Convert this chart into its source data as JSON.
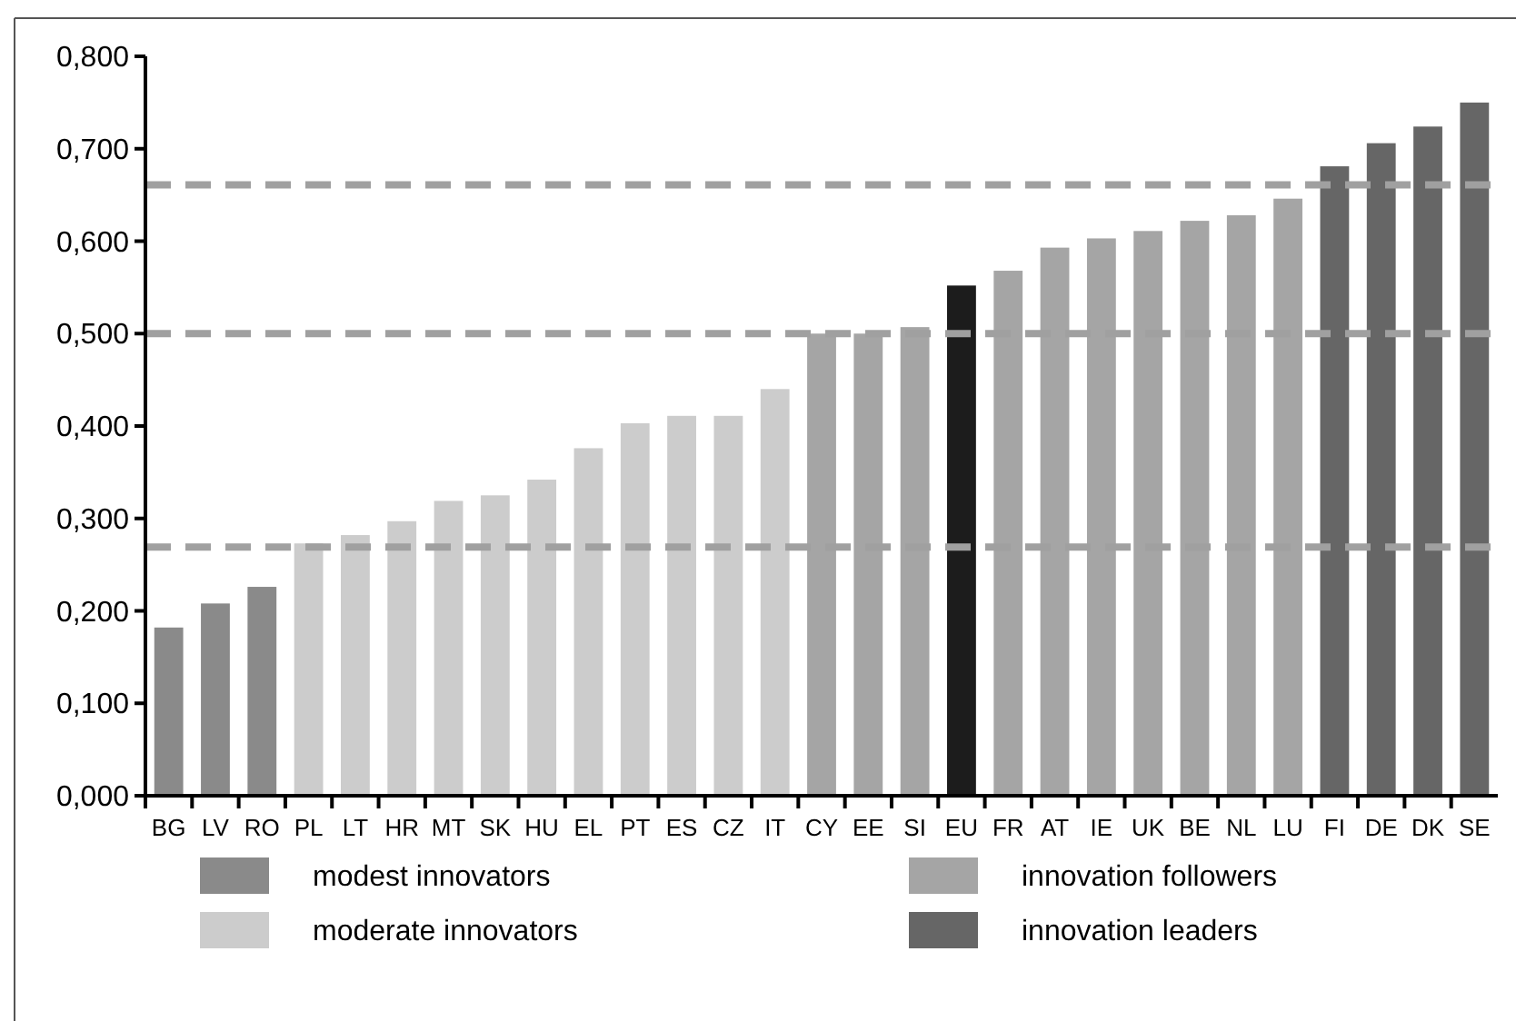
{
  "chart_data": {
    "type": "bar",
    "stacked": true,
    "categories": [
      "BG",
      "LV",
      "RO",
      "PL",
      "LT",
      "HR",
      "MT",
      "SK",
      "HU",
      "EL",
      "PT",
      "ES",
      "CZ",
      "IT",
      "CY",
      "EE",
      "SI",
      "EU",
      "FR",
      "AT",
      "IE",
      "UK",
      "BE",
      "NL",
      "LU",
      "FI",
      "DE",
      "DK",
      "SE"
    ],
    "series": [
      {
        "name": "modest innovators",
        "color": "#8a8a8a",
        "values": [
          0.182,
          0.208,
          0.226,
          null,
          null,
          null,
          null,
          null,
          null,
          null,
          null,
          null,
          null,
          null,
          null,
          null,
          null,
          null,
          null,
          null,
          null,
          null,
          null,
          null,
          null,
          null,
          null,
          null,
          null
        ]
      },
      {
        "name": "moderate innovators",
        "color": "#cccccc",
        "values": [
          null,
          null,
          null,
          0.273,
          0.282,
          0.297,
          0.319,
          0.325,
          0.342,
          0.376,
          0.403,
          0.411,
          0.411,
          0.44,
          null,
          null,
          null,
          null,
          null,
          null,
          null,
          null,
          null,
          null,
          null,
          null,
          null,
          null,
          null
        ]
      },
      {
        "name": "innovation followers",
        "color": "#a5a5a5",
        "values": [
          null,
          null,
          null,
          null,
          null,
          null,
          null,
          null,
          null,
          null,
          null,
          null,
          null,
          null,
          0.5,
          0.5,
          0.507,
          null,
          0.568,
          0.593,
          0.603,
          0.611,
          0.622,
          0.628,
          0.646,
          null,
          null,
          null,
          null
        ]
      },
      {
        "name": "innovation leaders",
        "color": "#666666",
        "values": [
          null,
          null,
          null,
          null,
          null,
          null,
          null,
          null,
          null,
          null,
          null,
          null,
          null,
          null,
          null,
          null,
          null,
          null,
          null,
          null,
          null,
          null,
          null,
          null,
          null,
          0.681,
          0.706,
          0.724,
          0.75
        ]
      },
      {
        "color": "#1c1c1c",
        "values": [
          null,
          null,
          null,
          null,
          null,
          null,
          null,
          null,
          null,
          null,
          null,
          null,
          null,
          null,
          null,
          null,
          null,
          0.552,
          null,
          null,
          null,
          null,
          null,
          null,
          null,
          null,
          null,
          null,
          null
        ]
      }
    ],
    "ylim": [
      0,
      0.8
    ],
    "yticks": [
      {
        "value": 0,
        "label": "0,000"
      },
      {
        "value": 0.1,
        "label": "0,100"
      },
      {
        "value": 0.2,
        "label": "0,200"
      },
      {
        "value": 0.3,
        "label": "0,300"
      },
      {
        "value": 0.4,
        "label": "0,400"
      },
      {
        "value": 0.5,
        "label": "0,500"
      },
      {
        "value": 0.6,
        "label": "0,600"
      },
      {
        "value": 0.7,
        "label": "0,700"
      },
      {
        "value": 0.8,
        "label": "0,800"
      }
    ],
    "ref_lines": [
      {
        "axis": "y",
        "value": 0.269,
        "color": "#a0a0a0",
        "line_style": "dashed"
      },
      {
        "axis": "y",
        "value": 0.5,
        "color": "#a0a0a0",
        "line_style": "dashed"
      },
      {
        "axis": "y",
        "value": 0.661,
        "color": "#a0a0a0",
        "line_style": "dashed"
      }
    ],
    "legend": "bottom",
    "grid": false
  }
}
